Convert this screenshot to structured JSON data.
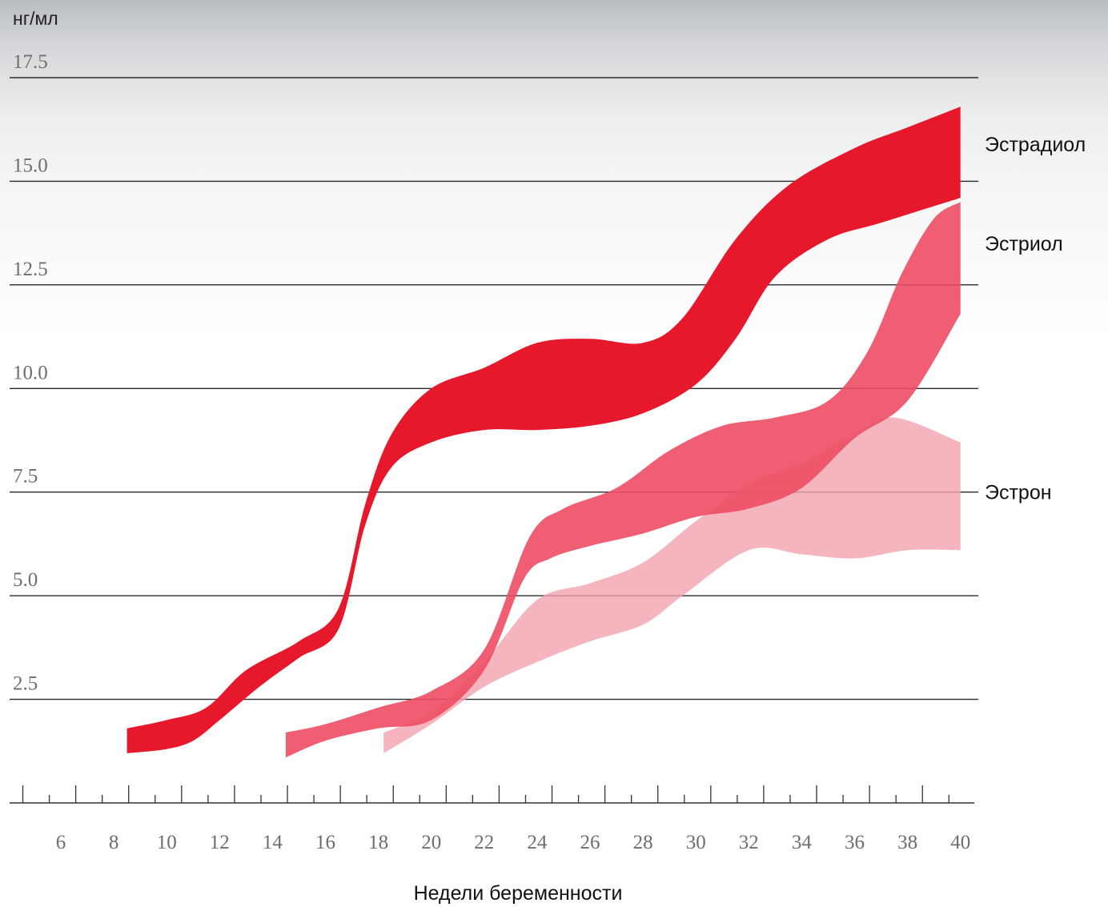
{
  "chart_data": {
    "type": "area",
    "ylabel": "нг/мл",
    "xlabel": "Недели беременности",
    "ylim": [
      0,
      17.5
    ],
    "xlim": [
      4.5,
      40.5
    ],
    "y_ticks": [
      "2.5",
      "5.0",
      "7.5",
      "10.0",
      "12.5",
      "15.0",
      "17.5"
    ],
    "x_ticks": [
      "6",
      "8",
      "10",
      "12",
      "14",
      "16",
      "18",
      "20",
      "22",
      "24",
      "26",
      "28",
      "30",
      "32",
      "34",
      "36",
      "38",
      "40"
    ],
    "grid": true,
    "series": [
      {
        "name": "Эстрон",
        "color": "#f1a2ae",
        "opacity": 0.8,
        "upper": [
          [
            18.2,
            1.7
          ],
          [
            20,
            2.2
          ],
          [
            22,
            3.4
          ],
          [
            24,
            4.9
          ],
          [
            26,
            5.3
          ],
          [
            28,
            5.8
          ],
          [
            30,
            6.8
          ],
          [
            32,
            7.7
          ],
          [
            34,
            8.2
          ],
          [
            36,
            8.9
          ],
          [
            37.5,
            9.3
          ],
          [
            40,
            8.7
          ]
        ],
        "lower": [
          [
            18.2,
            1.2
          ],
          [
            20,
            1.9
          ],
          [
            22,
            2.8
          ],
          [
            24,
            3.4
          ],
          [
            26,
            3.9
          ],
          [
            28,
            4.3
          ],
          [
            29.5,
            5.0
          ],
          [
            32,
            6.1
          ],
          [
            34,
            6.0
          ],
          [
            36,
            5.9
          ],
          [
            38,
            6.1
          ],
          [
            40,
            6.1
          ]
        ]
      },
      {
        "name": "Эстриол",
        "color": "#ed4d63",
        "opacity": 0.9,
        "upper": [
          [
            14.5,
            1.7
          ],
          [
            16,
            1.9
          ],
          [
            18,
            2.3
          ],
          [
            20,
            2.7
          ],
          [
            22,
            3.7
          ],
          [
            23.7,
            6.4
          ],
          [
            25,
            7.1
          ],
          [
            27,
            7.6
          ],
          [
            29,
            8.5
          ],
          [
            31,
            9.1
          ],
          [
            33,
            9.3
          ],
          [
            35,
            9.7
          ],
          [
            36.5,
            10.9
          ],
          [
            37.8,
            12.8
          ],
          [
            39,
            14.1
          ],
          [
            40,
            14.5
          ]
        ],
        "lower": [
          [
            14.5,
            1.1
          ],
          [
            16,
            1.5
          ],
          [
            18,
            1.8
          ],
          [
            20,
            2.0
          ],
          [
            22,
            3.2
          ],
          [
            23.5,
            5.4
          ],
          [
            24.5,
            5.9
          ],
          [
            26,
            6.2
          ],
          [
            28,
            6.5
          ],
          [
            30,
            6.9
          ],
          [
            32,
            7.1
          ],
          [
            34,
            7.6
          ],
          [
            36,
            8.8
          ],
          [
            38,
            9.7
          ],
          [
            40,
            11.8
          ]
        ]
      },
      {
        "name": "Эстрадиол",
        "color": "#e8182c",
        "opacity": 1,
        "upper": [
          [
            8.5,
            1.8
          ],
          [
            10,
            2.0
          ],
          [
            11.5,
            2.3
          ],
          [
            13,
            3.2
          ],
          [
            15,
            3.9
          ],
          [
            16.5,
            4.7
          ],
          [
            17.5,
            7.2
          ],
          [
            18.5,
            8.9
          ],
          [
            20,
            10.0
          ],
          [
            22,
            10.5
          ],
          [
            24,
            11.1
          ],
          [
            26,
            11.2
          ],
          [
            28,
            11.1
          ],
          [
            29.5,
            11.7
          ],
          [
            31.5,
            13.6
          ],
          [
            33.5,
            14.9
          ],
          [
            36,
            15.8
          ],
          [
            38,
            16.3
          ],
          [
            40,
            16.8
          ]
        ],
        "lower": [
          [
            8.5,
            1.2
          ],
          [
            10,
            1.3
          ],
          [
            11,
            1.5
          ],
          [
            12,
            2.0
          ],
          [
            13.5,
            2.8
          ],
          [
            15,
            3.5
          ],
          [
            16.5,
            4.2
          ],
          [
            17.5,
            6.7
          ],
          [
            18.5,
            8.1
          ],
          [
            20,
            8.7
          ],
          [
            22,
            9.0
          ],
          [
            24,
            9.0
          ],
          [
            26,
            9.1
          ],
          [
            28,
            9.4
          ],
          [
            30,
            10.1
          ],
          [
            31.5,
            11.2
          ],
          [
            33,
            12.7
          ],
          [
            35,
            13.6
          ],
          [
            37,
            14.0
          ],
          [
            40,
            14.6
          ]
        ]
      }
    ],
    "labels": [
      {
        "text": "Эстрадиол",
        "y": 15.9
      },
      {
        "text": "Эстриол",
        "y": 13.5
      },
      {
        "text": "Эстрон",
        "y": 7.5
      }
    ]
  }
}
